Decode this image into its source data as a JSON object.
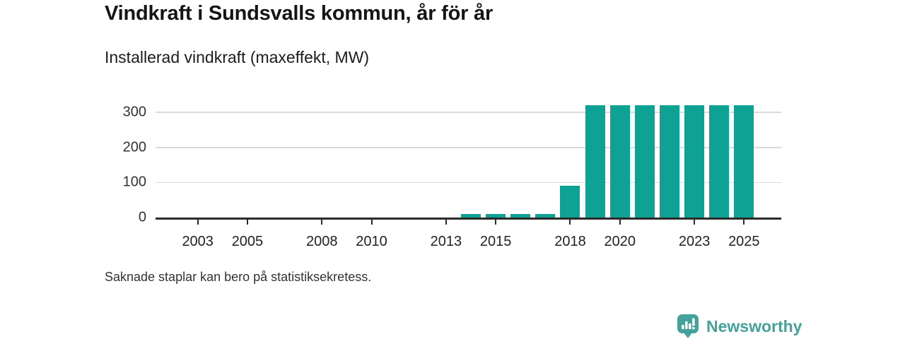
{
  "header": {
    "title": "Vindkraft i Sundsvalls kommun, år för år",
    "subtitle": "Installerad vindkraft (maxeffekt, MW)"
  },
  "footnote": "Saknade staplar kan bero på statistiksekretess.",
  "branding": {
    "name": "Newsworthy",
    "icon": "bar-chart-pin-icon",
    "color": "#44a29a"
  },
  "colors": {
    "bar": "#0ea295",
    "grid": "#dadada",
    "axis": "#2b2b2b",
    "title_text": "#141414",
    "body_text": "#333333"
  },
  "chart_data": {
    "type": "bar",
    "title": "Vindkraft i Sundsvalls kommun, år för år",
    "subtitle": "Installerad vindkraft (maxeffekt, MW)",
    "xlabel": "",
    "ylabel": "",
    "categories": [
      2002,
      2003,
      2004,
      2005,
      2006,
      2007,
      2008,
      2009,
      2010,
      2011,
      2012,
      2013,
      2014,
      2015,
      2016,
      2017,
      2018,
      2019,
      2020,
      2021,
      2022,
      2023,
      2024,
      2025
    ],
    "values": [
      null,
      null,
      null,
      null,
      null,
      null,
      null,
      null,
      null,
      null,
      null,
      null,
      10,
      10,
      10,
      10,
      90,
      320,
      320,
      320,
      320,
      320,
      320,
      320
    ],
    "xticks": [
      2003,
      2005,
      2008,
      2010,
      2013,
      2015,
      2018,
      2020,
      2023,
      2025
    ],
    "yticks": [
      0,
      100,
      200,
      300
    ],
    "xlim": [
      2001.3,
      2026.5
    ],
    "ylim": [
      0,
      320
    ],
    "grid": "horizontal",
    "legend": "none",
    "bar_color": "#0ea295"
  }
}
